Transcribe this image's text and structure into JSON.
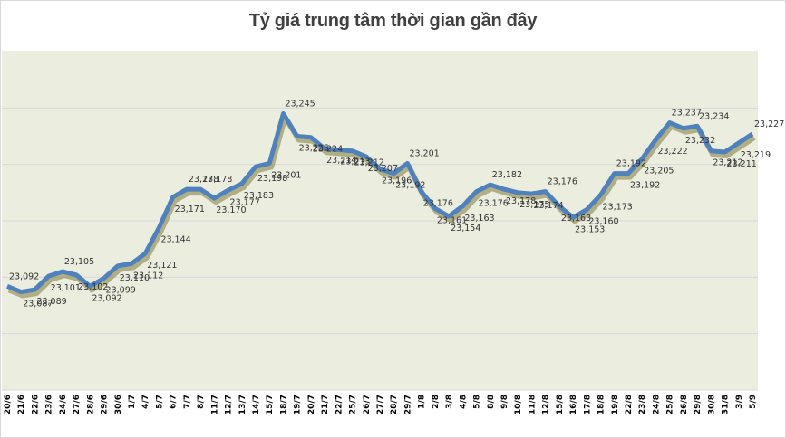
{
  "title": "Tỷ giá trung tâm thời gian gần đây",
  "colors": {
    "plot_background": "#ebeddf",
    "line": "#4f81bd",
    "shadow": "#7f7a3a",
    "gridline": "#d9d9d9",
    "label_text": "#333333"
  },
  "chart_data": {
    "type": "line",
    "title": "Tỷ giá trung tâm thời gian gần đây",
    "xlabel": "",
    "ylabel": "",
    "ylim": [
      23000,
      23300
    ],
    "grid": true,
    "legend": null,
    "categories": [
      "20/6",
      "21/6",
      "22/6",
      "23/6",
      "24/6",
      "27/6",
      "28/6",
      "29/6",
      "30/6",
      "1/7",
      "4/7",
      "5/7",
      "6/7",
      "7/7",
      "8/7",
      "11/7",
      "12/7",
      "13/7",
      "14/7",
      "15/7",
      "18/7",
      "19/7",
      "20/7",
      "21/7",
      "22/7",
      "25/7",
      "26/7",
      "27/7",
      "28/7",
      "29/7",
      "1/8",
      "2/8",
      "3/8",
      "4/8",
      "5/8",
      "8/8",
      "9/8",
      "10/8",
      "11/8",
      "12/8",
      "15/8",
      "16/8",
      "17/8",
      "18/8",
      "19/8",
      "22/8",
      "23/8",
      "24/8",
      "25/8",
      "26/8",
      "29/8",
      "30/8",
      "31/8",
      "3/9",
      "5/9"
    ],
    "series": [
      {
        "name": "Tỷ giá trung tâm",
        "values": [
          23092,
          23087,
          23089,
          23101,
          23105,
          23102,
          23092,
          23099,
          23110,
          23112,
          23121,
          23144,
          23171,
          23178,
          23178,
          23170,
          23177,
          23183,
          23198,
          23201,
          23245,
          23225,
          23224,
          23214,
          23213,
          23212,
          23207,
          23196,
          23192,
          23201,
          23176,
          23161,
          23154,
          23163,
          23176,
          23182,
          23178,
          23175,
          23174,
          23176,
          23163,
          23153,
          23160,
          23173,
          23192,
          23192,
          23205,
          23222,
          23237,
          23232,
          23234,
          23212,
          23211,
          23219,
          23227
        ]
      }
    ],
    "data_label_format": "23,xxx"
  }
}
